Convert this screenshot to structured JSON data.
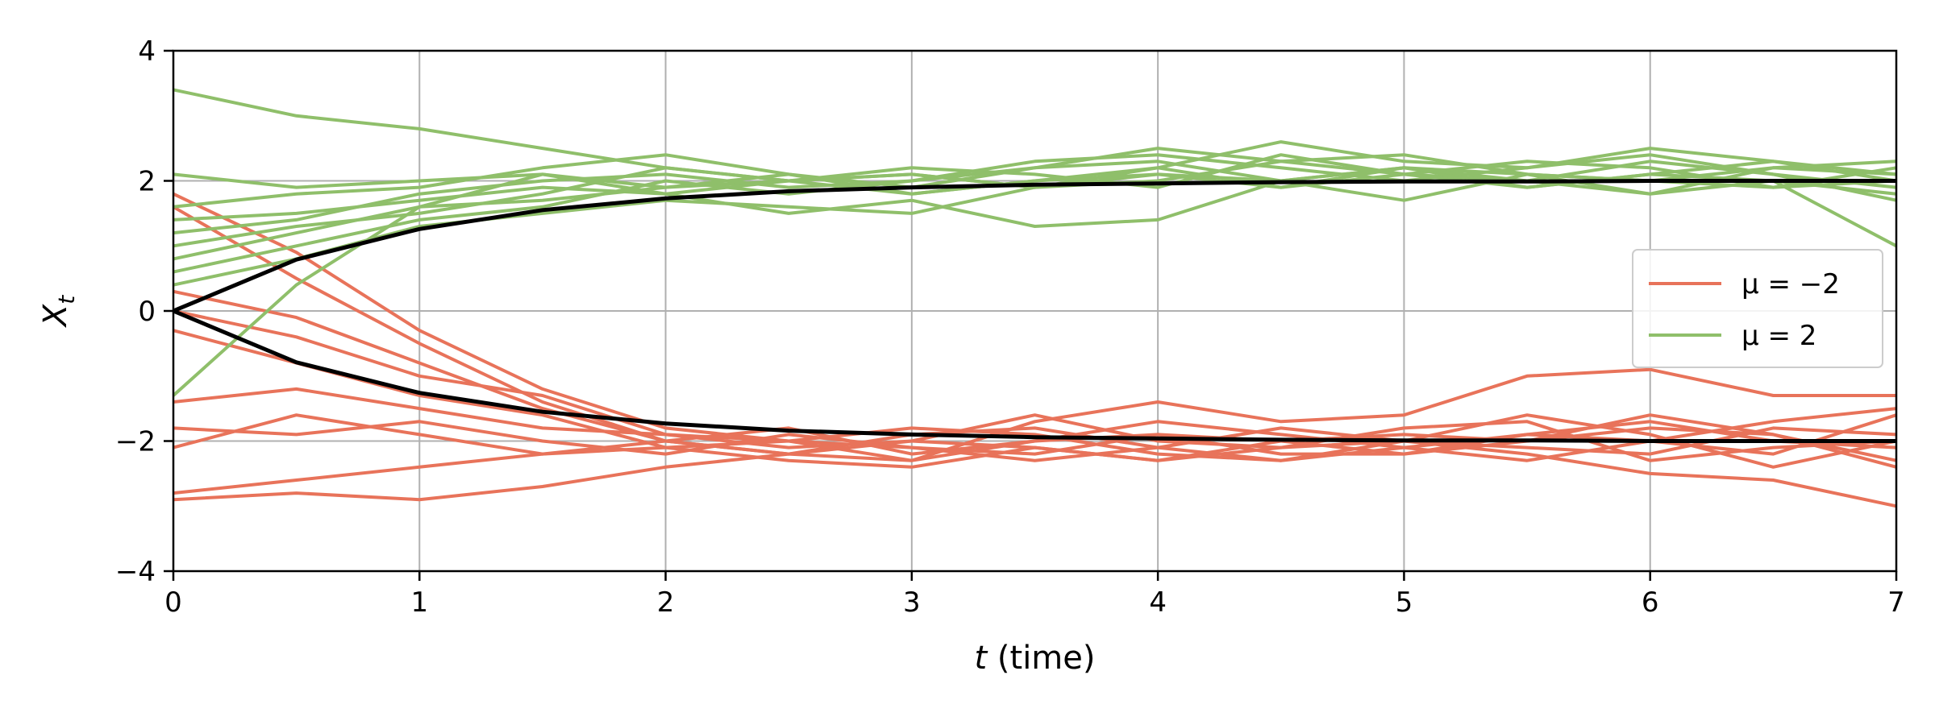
{
  "chart_data": {
    "type": "line",
    "title": "",
    "xlabel": "t (time)",
    "ylabel": "X_t",
    "xlim": [
      0,
      7
    ],
    "ylim": [
      -4,
      4
    ],
    "xticks": [
      0,
      1,
      2,
      3,
      4,
      5,
      6,
      7
    ],
    "xtick_labels": [
      "0",
      "1",
      "2",
      "3",
      "4",
      "5",
      "6",
      "7"
    ],
    "yticks": [
      -4,
      -2,
      0,
      2,
      4
    ],
    "ytick_labels": [
      "−4",
      "−2",
      "0",
      "2",
      "4"
    ],
    "grid": true,
    "legend": {
      "placement": "center-right",
      "entries": [
        {
          "label": "μ = −2",
          "color": "#e8735a"
        },
        {
          "label": "μ = 2",
          "color": "#8fbf6a"
        }
      ]
    },
    "x": [
      0,
      0.5,
      1,
      1.5,
      2,
      2.5,
      3,
      3.5,
      4,
      4.5,
      5,
      5.5,
      6,
      6.5,
      7
    ],
    "groups": [
      {
        "legend_label": "μ = −2",
        "color": "#e8735a",
        "paths": [
          {
            "values": [
              1.8,
              0.9,
              -0.3,
              -1.2,
              -1.8,
              -2.0,
              -2.1,
              -2.2,
              -1.9,
              -2.0,
              -2.2,
              -1.9,
              -1.7,
              -2.0,
              -2.1
            ]
          },
          {
            "values": [
              1.6,
              0.5,
              -0.5,
              -1.4,
              -2.0,
              -2.2,
              -1.9,
              -1.8,
              -2.1,
              -2.3,
              -2.0,
              -2.1,
              -2.2,
              -1.8,
              -1.9
            ]
          },
          {
            "values": [
              0.3,
              -0.1,
              -0.8,
              -1.5,
              -2.0,
              -1.8,
              -2.2,
              -2.0,
              -1.7,
              -1.9,
              -2.1,
              -2.3,
              -2.0,
              -2.2,
              -1.6
            ]
          },
          {
            "values": [
              0.0,
              -0.4,
              -1.0,
              -1.3,
              -1.9,
              -2.1,
              -2.0,
              -1.6,
              -2.0,
              -2.1,
              -1.8,
              -1.7,
              -2.3,
              -2.1,
              -2.0
            ]
          },
          {
            "values": [
              -0.3,
              -0.8,
              -1.3,
              -1.6,
              -2.1,
              -2.3,
              -2.4,
              -2.1,
              -2.3,
              -2.0,
              -1.9,
              -2.0,
              -1.6,
              -1.9,
              -2.3
            ]
          },
          {
            "values": [
              -1.4,
              -1.2,
              -1.5,
              -1.8,
              -1.9,
              -2.0,
              -1.8,
              -1.9,
              -2.2,
              -2.3,
              -2.1,
              -1.9,
              -2.0,
              -1.7,
              -1.5
            ]
          },
          {
            "values": [
              -1.8,
              -1.9,
              -1.7,
              -2.0,
              -2.2,
              -1.9,
              -2.1,
              -2.3,
              -2.1,
              -1.8,
              -2.0,
              -1.6,
              -1.9,
              -2.4,
              -2.0
            ]
          },
          {
            "values": [
              -2.1,
              -1.6,
              -1.9,
              -2.2,
              -2.0,
              -2.2,
              -2.3,
              -2.0,
              -1.9,
              -2.2,
              -2.2,
              -2.0,
              -1.8,
              -1.9,
              -2.4
            ]
          },
          {
            "values": [
              -2.8,
              -2.6,
              -2.4,
              -2.2,
              -2.1,
              -2.0,
              -2.3,
              -1.7,
              -1.4,
              -1.7,
              -1.6,
              -1.0,
              -0.9,
              -1.3,
              -1.3
            ]
          },
          {
            "values": [
              -2.9,
              -2.8,
              -2.9,
              -2.7,
              -2.4,
              -2.2,
              -2.0,
              -2.1,
              -2.3,
              -2.1,
              -2.0,
              -2.2,
              -2.5,
              -2.6,
              -3.0
            ]
          }
        ]
      },
      {
        "legend_label": "μ = 2",
        "color": "#8fbf6a",
        "paths": [
          {
            "values": [
              3.4,
              3.0,
              2.8,
              2.5,
              2.2,
              2.0,
              2.1,
              1.9,
              2.1,
              2.0,
              2.2,
              2.1,
              2.0,
              1.9,
              2.0
            ]
          },
          {
            "values": [
              2.1,
              1.9,
              2.0,
              2.1,
              1.9,
              2.0,
              1.8,
              2.0,
              2.2,
              1.9,
              2.1,
              2.0,
              1.8,
              2.2,
              2.1
            ]
          },
          {
            "values": [
              1.6,
              1.8,
              1.9,
              2.2,
              2.4,
              2.1,
              1.9,
              2.2,
              2.3,
              2.0,
              2.2,
              1.9,
              2.1,
              2.0,
              1.8
            ]
          },
          {
            "values": [
              1.4,
              1.5,
              1.7,
              1.9,
              1.8,
              2.0,
              2.2,
              2.1,
              1.9,
              2.4,
              2.1,
              2.3,
              2.2,
              1.9,
              2.2
            ]
          },
          {
            "values": [
              1.2,
              1.4,
              1.8,
              2.0,
              2.1,
              1.9,
              2.0,
              2.3,
              2.4,
              2.2,
              2.0,
              2.2,
              2.4,
              2.1,
              1.9
            ]
          },
          {
            "values": [
              1.0,
              1.3,
              1.5,
              1.8,
              2.2,
              2.0,
              2.1,
              1.9,
              2.0,
              2.3,
              2.4,
              2.1,
              2.0,
              2.2,
              2.3
            ]
          },
          {
            "values": [
              0.8,
              1.2,
              1.6,
              1.7,
              1.9,
              2.1,
              1.8,
              2.0,
              2.1,
              1.9,
              2.2,
              2.0,
              2.3,
              2.1,
              1.7
            ]
          },
          {
            "values": [
              0.6,
              1.0,
              1.4,
              1.6,
              2.0,
              1.8,
              2.0,
              2.2,
              2.5,
              2.3,
              2.1,
              1.9,
              2.1,
              2.3,
              2.0
            ]
          },
          {
            "values": [
              0.4,
              0.8,
              1.3,
              1.5,
              1.7,
              1.6,
              1.5,
              1.9,
              2.2,
              2.6,
              2.3,
              2.2,
              2.5,
              2.3,
              2.1
            ]
          },
          {
            "values": [
              -1.3,
              0.4,
              1.6,
              2.1,
              1.8,
              1.5,
              1.7,
              1.3,
              1.4,
              2.0,
              1.7,
              2.1,
              1.8,
              2.0,
              1.0
            ]
          }
        ]
      }
    ],
    "mean_curves": {
      "color": "#000000",
      "curves": [
        {
          "mu": 2,
          "values": [
            0,
            0.79,
            1.26,
            1.55,
            1.73,
            1.84,
            1.9,
            1.94,
            1.96,
            1.98,
            1.99,
            1.99,
            2.0,
            2.0,
            2.0
          ]
        },
        {
          "mu": -2,
          "values": [
            0,
            -0.79,
            -1.26,
            -1.55,
            -1.73,
            -1.84,
            -1.9,
            -1.94,
            -1.96,
            -1.98,
            -1.99,
            -1.99,
            -2.0,
            -2.0,
            -2.0
          ]
        }
      ]
    }
  }
}
